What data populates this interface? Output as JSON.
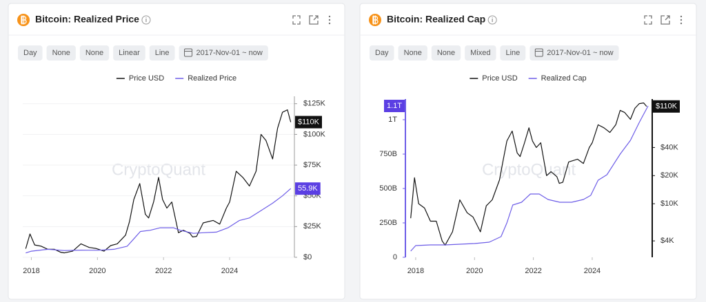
{
  "chart_data": [
    {
      "type": "line",
      "title": "Bitcoin: Realized Price",
      "controls": [
        "Day",
        "None",
        "None",
        "Linear",
        "Line",
        "2017-Nov-01 ~ now"
      ],
      "watermark": "CryptoQuant",
      "xlim": [
        2017.74,
        2025.96
      ],
      "xticks": [
        2018,
        2020,
        2022,
        2024
      ],
      "ylim": [
        0,
        131000
      ],
      "yticks": [
        {
          "value": 0,
          "label": "$0"
        },
        {
          "value": 25000,
          "label": "$25K"
        },
        {
          "value": 50000,
          "label": "$50K"
        },
        {
          "value": 75000,
          "label": "$75K"
        },
        {
          "value": 100000,
          "label": "$100K"
        },
        {
          "value": 125000,
          "label": "$125K"
        }
      ],
      "y_axis_position": "right",
      "grid": true,
      "series": [
        {
          "name": "Price USD",
          "color": "#111111",
          "x": [
            2017.83,
            2017.96,
            2018.1,
            2018.3,
            2018.5,
            2018.7,
            2018.9,
            2019.0,
            2019.25,
            2019.5,
            2019.75,
            2019.95,
            2020.2,
            2020.4,
            2020.6,
            2020.85,
            2020.97,
            2021.1,
            2021.28,
            2021.45,
            2021.55,
            2021.7,
            2021.85,
            2021.97,
            2022.1,
            2022.25,
            2022.45,
            2022.6,
            2022.8,
            2022.88,
            2023.0,
            2023.2,
            2023.5,
            2023.7,
            2023.9,
            2024.0,
            2024.2,
            2024.4,
            2024.6,
            2024.8,
            2024.95,
            2025.1,
            2025.3,
            2025.45,
            2025.6,
            2025.75,
            2025.85
          ],
          "values": [
            7000,
            19000,
            10000,
            9000,
            6500,
            6500,
            4000,
            3600,
            5000,
            11000,
            8000,
            7200,
            5000,
            9500,
            11000,
            18000,
            29000,
            47000,
            60000,
            35000,
            32000,
            45000,
            65000,
            47000,
            40000,
            45000,
            20000,
            22000,
            19500,
            16500,
            17000,
            28000,
            30000,
            27000,
            40000,
            45000,
            70000,
            65000,
            58000,
            70000,
            100000,
            95000,
            80000,
            105000,
            118000,
            120000,
            110000
          ],
          "value_labels": [
            null,
            null,
            null,
            null,
            null,
            null,
            null,
            null,
            null,
            null,
            null,
            null,
            null,
            null,
            null,
            null,
            null,
            null,
            null,
            null,
            null,
            null,
            null,
            null,
            null,
            null,
            null,
            null,
            null,
            null,
            null,
            null,
            null,
            null,
            null,
            null,
            null,
            null,
            null,
            null,
            null,
            null,
            null,
            null,
            null,
            null,
            "$110K"
          ]
        },
        {
          "name": "Realized Price",
          "color": "#6c5ce7",
          "x": [
            2017.83,
            2018.0,
            2018.5,
            2019.0,
            2019.5,
            2020.0,
            2020.5,
            2020.9,
            2021.1,
            2021.3,
            2021.6,
            2021.9,
            2022.3,
            2022.5,
            2022.9,
            2023.2,
            2023.6,
            2023.95,
            2024.3,
            2024.6,
            2024.95,
            2025.3,
            2025.6,
            2025.85
          ],
          "values": [
            3500,
            5000,
            6500,
            5500,
            5800,
            5700,
            6500,
            9000,
            15000,
            21000,
            22000,
            24000,
            24000,
            22000,
            19500,
            20000,
            20500,
            24000,
            30000,
            32000,
            38000,
            44000,
            50000,
            55900
          ],
          "value_labels": [
            null,
            null,
            null,
            null,
            null,
            null,
            null,
            null,
            null,
            null,
            null,
            null,
            null,
            null,
            null,
            null,
            null,
            null,
            null,
            null,
            null,
            null,
            null,
            "55.9K"
          ]
        }
      ]
    },
    {
      "type": "line",
      "title": "Bitcoin: Realized Cap",
      "controls": [
        "Day",
        "None",
        "None",
        "Mixed",
        "Line",
        "2017-Nov-01 ~ now"
      ],
      "watermark": "CryptoQuant",
      "xlim": [
        2017.65,
        2026.04
      ],
      "xticks": [
        2018,
        2020,
        2022,
        2024
      ],
      "ylim": [
        0,
        1150
      ],
      "yticks": [
        0,
        {
          "value": 250,
          "label": "250B"
        },
        {
          "value": 500,
          "label": "500B"
        },
        {
          "value": 750,
          "label": "750B"
        },
        {
          "value": 1000,
          "label": "1T"
        }
      ],
      "y_axis_position": "left",
      "y2lim": [
        2670,
        132000
      ],
      "y2_log_scale": true,
      "y2ticks": [
        {
          "value": 4000,
          "label": "$4K"
        },
        {
          "value": 10000,
          "label": "$10K"
        },
        {
          "value": 20000,
          "label": "$20K"
        },
        {
          "value": 40000,
          "label": "$40K"
        }
      ],
      "grid": false,
      "series": [
        {
          "name": "Price USD",
          "color": "#111111",
          "axis": "y2",
          "x": [
            2017.83,
            2017.96,
            2018.1,
            2018.3,
            2018.5,
            2018.7,
            2018.9,
            2019.0,
            2019.25,
            2019.5,
            2019.75,
            2019.95,
            2020.2,
            2020.4,
            2020.6,
            2020.85,
            2020.97,
            2021.1,
            2021.28,
            2021.45,
            2021.55,
            2021.7,
            2021.85,
            2021.97,
            2022.1,
            2022.25,
            2022.45,
            2022.6,
            2022.8,
            2022.88,
            2023.0,
            2023.2,
            2023.5,
            2023.7,
            2023.9,
            2024.0,
            2024.2,
            2024.4,
            2024.6,
            2024.8,
            2024.95,
            2025.1,
            2025.3,
            2025.45,
            2025.6,
            2025.75,
            2025.85
          ],
          "values": [
            7000,
            19000,
            10000,
            9000,
            6500,
            6500,
            4000,
            3600,
            5000,
            11000,
            8000,
            7200,
            5000,
            9500,
            11000,
            18000,
            29000,
            47000,
            60000,
            35000,
            32000,
            45000,
            65000,
            47000,
            40000,
            45000,
            20000,
            22000,
            19500,
            16500,
            17000,
            28000,
            30000,
            27000,
            40000,
            45000,
            70000,
            65000,
            58000,
            70000,
            100000,
            95000,
            80000,
            105000,
            118000,
            120000,
            110000
          ],
          "value_labels": [
            null,
            null,
            null,
            null,
            null,
            null,
            null,
            null,
            null,
            null,
            null,
            null,
            null,
            null,
            null,
            null,
            null,
            null,
            null,
            null,
            null,
            null,
            null,
            null,
            null,
            null,
            null,
            null,
            null,
            null,
            null,
            null,
            null,
            null,
            null,
            null,
            null,
            null,
            null,
            null,
            null,
            null,
            null,
            null,
            null,
            null,
            "$110K"
          ]
        },
        {
          "name": "Realized Cap",
          "color": "#6c5ce7",
          "x": [
            2017.83,
            2018.0,
            2018.5,
            2019.0,
            2019.5,
            2020.0,
            2020.5,
            2020.9,
            2021.1,
            2021.3,
            2021.6,
            2021.9,
            2022.2,
            2022.5,
            2022.9,
            2023.3,
            2023.7,
            2023.95,
            2024.2,
            2024.5,
            2024.95,
            2025.3,
            2025.6,
            2025.9
          ],
          "values": [
            45,
            85,
            90,
            90,
            95,
            100,
            110,
            150,
            250,
            380,
            400,
            460,
            460,
            420,
            400,
            400,
            420,
            450,
            560,
            600,
            750,
            850,
            980,
            1100
          ],
          "value_labels": [
            null,
            null,
            null,
            null,
            null,
            null,
            null,
            null,
            null,
            null,
            null,
            null,
            null,
            null,
            null,
            null,
            null,
            null,
            null,
            null,
            null,
            null,
            null,
            "1.1T"
          ]
        }
      ]
    }
  ]
}
